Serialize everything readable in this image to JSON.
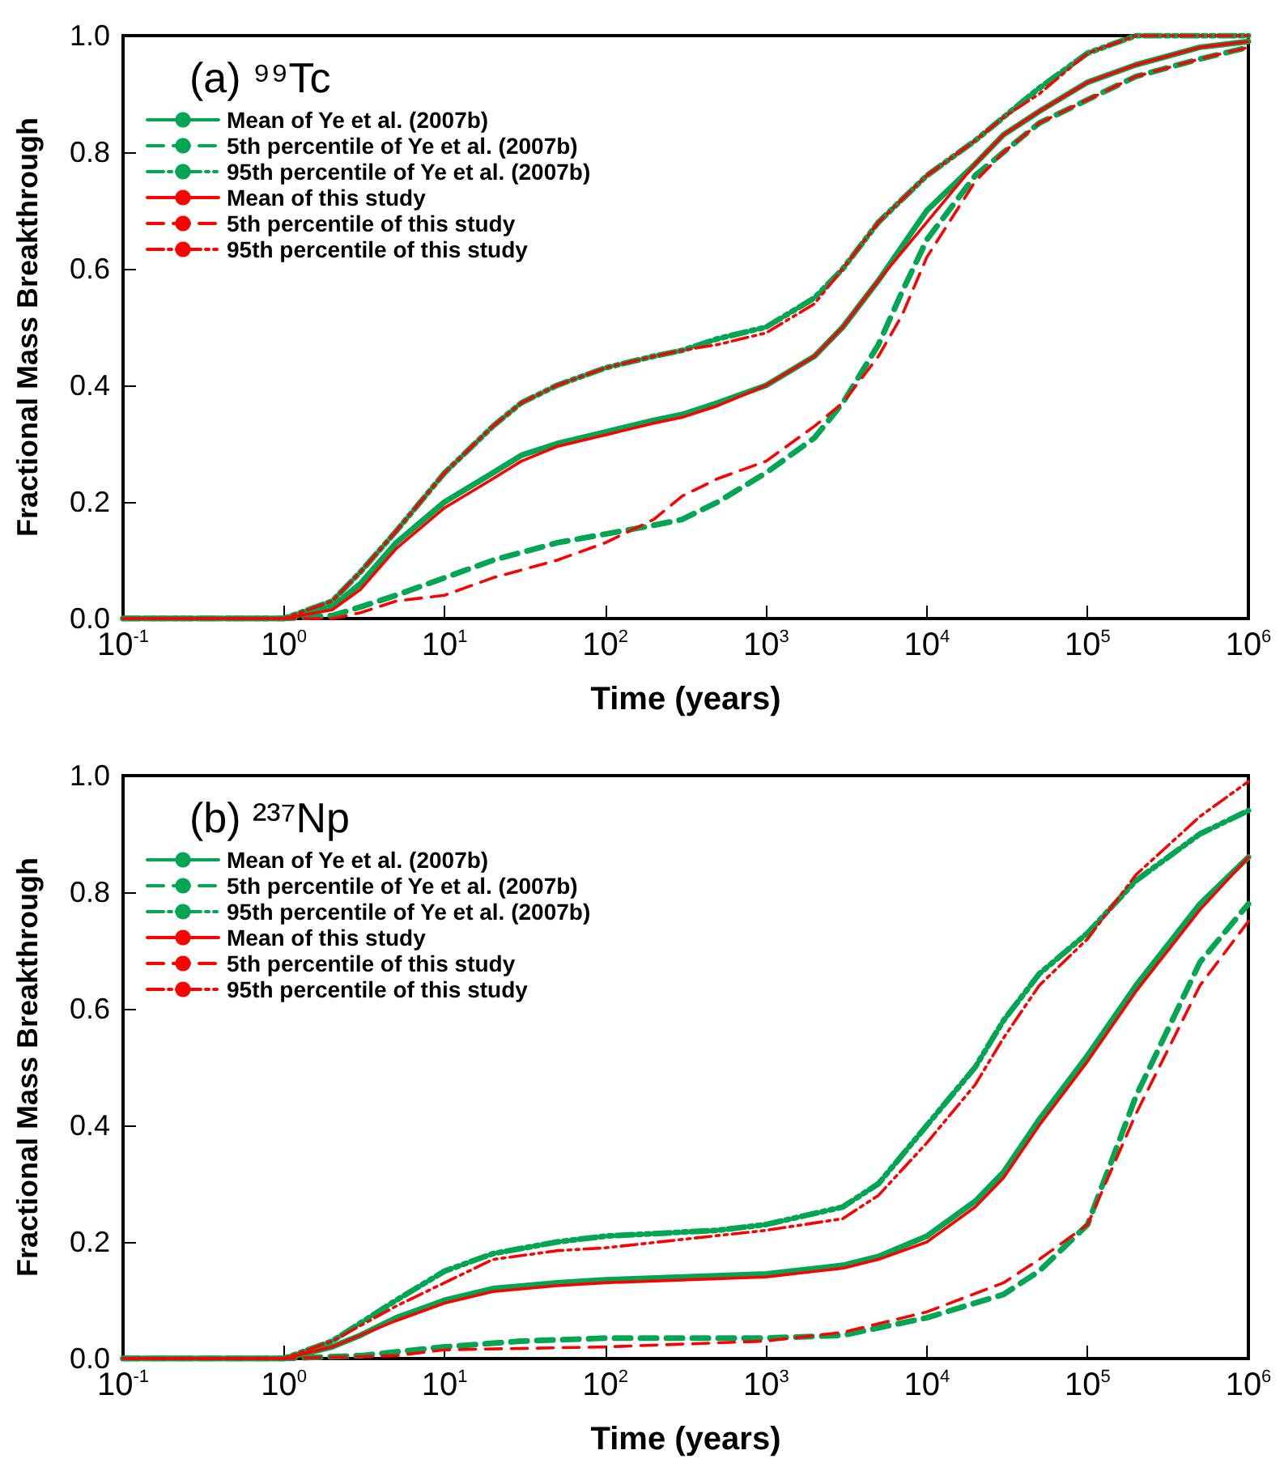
{
  "chart_data": [
    {
      "type": "line",
      "title": "(a) ⁹⁹Tc",
      "xlabel": "Time (years)",
      "ylabel": "Fractional Mass Breakthrough",
      "log": "x",
      "legend": "top left",
      "grid": false,
      "marker": "none",
      "xlim": [
        0.1,
        1000000
      ],
      "xticks": [
        {
          "value": 0.1,
          "label": "10$^{-1}$"
        },
        {
          "value": 1,
          "label": "10$^{0}$"
        },
        {
          "value": 10,
          "label": "10$^{1}$"
        },
        {
          "value": 100,
          "label": "10$^{2}$"
        },
        {
          "value": 1000,
          "label": "10$^{3}$"
        },
        {
          "value": 10000,
          "label": "10$^{4}$"
        },
        {
          "value": 100000,
          "label": "10$^{5}$"
        },
        {
          "value": 1000000,
          "label": "10$^{6}$"
        }
      ],
      "ylim": [
        0,
        1
      ],
      "yticks": [
        {
          "value": 0,
          "label": "0.0"
        },
        {
          "value": 0.2,
          "label": "0.2"
        },
        {
          "value": 0.4,
          "label": "0.4"
        },
        {
          "value": 0.6,
          "label": "0.6"
        },
        {
          "value": 0.8,
          "label": "0.8"
        },
        {
          "value": 1,
          "label": "1.0"
        }
      ],
      "series": [
        {
          "name": "Mean of Ye et al. (2007b)",
          "color": "#00a651",
          "line_style": "solid",
          "x": [
            0.1,
            1,
            2,
            3,
            5,
            10,
            20,
            30,
            50,
            100,
            200,
            300,
            500,
            1000,
            2000,
            3000,
            5000,
            10000,
            20000,
            30000,
            50000,
            100000,
            200000,
            500000,
            1000000
          ],
          "values": [
            0,
            0,
            0.02,
            0.06,
            0.13,
            0.2,
            0.25,
            0.28,
            0.3,
            0.32,
            0.34,
            0.35,
            0.37,
            0.4,
            0.45,
            0.5,
            0.58,
            0.7,
            0.78,
            0.83,
            0.87,
            0.92,
            0.95,
            0.98,
            0.99
          ]
        },
        {
          "name": "5th percentile of Ye et al. (2007b)",
          "color": "#00a651",
          "line_style": "dashed",
          "x": [
            0.1,
            1,
            2,
            3,
            5,
            10,
            20,
            50,
            100,
            200,
            300,
            500,
            1000,
            2000,
            3000,
            5000,
            7000,
            10000,
            20000,
            30000,
            50000,
            100000,
            200000,
            500000,
            1000000
          ],
          "values": [
            0,
            0,
            0.005,
            0.02,
            0.04,
            0.07,
            0.1,
            0.13,
            0.145,
            0.16,
            0.17,
            0.2,
            0.25,
            0.31,
            0.37,
            0.47,
            0.56,
            0.65,
            0.76,
            0.8,
            0.85,
            0.89,
            0.93,
            0.96,
            0.98
          ]
        },
        {
          "name": "95th percentile of Ye et al. (2007b)",
          "color": "#00a651",
          "line_style": "dotted",
          "x": [
            0.1,
            1,
            2,
            3,
            5,
            10,
            20,
            30,
            50,
            100,
            200,
            300,
            500,
            1000,
            2000,
            3000,
            5000,
            10000,
            20000,
            30000,
            50000,
            100000,
            200000,
            1000000
          ],
          "values": [
            0,
            0,
            0.03,
            0.08,
            0.15,
            0.25,
            0.33,
            0.37,
            0.4,
            0.43,
            0.45,
            0.46,
            0.48,
            0.5,
            0.55,
            0.6,
            0.68,
            0.76,
            0.82,
            0.86,
            0.91,
            0.97,
            1,
            1
          ]
        },
        {
          "name": "Mean of this study",
          "color": "#ff0000",
          "line_style": "solid",
          "x": [
            0.1,
            1,
            2,
            3,
            5,
            10,
            20,
            30,
            50,
            100,
            200,
            300,
            500,
            1000,
            2000,
            3000,
            5000,
            10000,
            20000,
            30000,
            50000,
            100000,
            200000,
            500000,
            1000000
          ],
          "values": [
            0,
            0,
            0.015,
            0.05,
            0.12,
            0.19,
            0.24,
            0.27,
            0.295,
            0.315,
            0.335,
            0.345,
            0.365,
            0.4,
            0.45,
            0.5,
            0.58,
            0.68,
            0.78,
            0.83,
            0.87,
            0.92,
            0.95,
            0.98,
            0.99
          ]
        },
        {
          "name": "5th percentile of this study",
          "color": "#ff0000",
          "line_style": "dashed",
          "x": [
            0.1,
            1,
            2,
            3,
            5,
            10,
            20,
            50,
            100,
            200,
            300,
            500,
            1000,
            2000,
            3000,
            5000,
            7000,
            10000,
            20000,
            30000,
            50000,
            100000,
            200000,
            500000,
            1000000
          ],
          "values": [
            0,
            0,
            0,
            0.01,
            0.03,
            0.04,
            0.07,
            0.1,
            0.13,
            0.17,
            0.21,
            0.24,
            0.27,
            0.33,
            0.37,
            0.45,
            0.52,
            0.62,
            0.75,
            0.8,
            0.85,
            0.89,
            0.93,
            0.96,
            0.98
          ]
        },
        {
          "name": "95th percentile of this study",
          "color": "#ff0000",
          "line_style": "dotted",
          "x": [
            0.1,
            1,
            2,
            3,
            5,
            10,
            20,
            30,
            50,
            100,
            200,
            300,
            500,
            1000,
            2000,
            3000,
            5000,
            10000,
            20000,
            30000,
            50000,
            100000,
            200000,
            1000000
          ],
          "values": [
            0,
            0,
            0.03,
            0.08,
            0.15,
            0.25,
            0.33,
            0.37,
            0.4,
            0.43,
            0.45,
            0.46,
            0.47,
            0.49,
            0.54,
            0.6,
            0.68,
            0.76,
            0.82,
            0.86,
            0.9,
            0.97,
            1,
            1
          ]
        }
      ]
    },
    {
      "type": "line",
      "title": "(b) ²³⁷Np",
      "xlabel": "Time (years)",
      "ylabel": "Fractional Mass Breakthrough",
      "log": "x",
      "legend": "top left",
      "grid": false,
      "marker": "none",
      "xlim": [
        0.1,
        1000000
      ],
      "xticks": [
        {
          "value": 0.1,
          "label": "10$^{-1}$"
        },
        {
          "value": 1,
          "label": "10$^{0}$"
        },
        {
          "value": 10,
          "label": "10$^{1}$"
        },
        {
          "value": 100,
          "label": "10$^{2}$"
        },
        {
          "value": 1000,
          "label": "10$^{3}$"
        },
        {
          "value": 10000,
          "label": "10$^{4}$"
        },
        {
          "value": 100000,
          "label": "10$^{5}$"
        },
        {
          "value": 1000000,
          "label": "10$^{6}$"
        }
      ],
      "ylim": [
        0,
        1
      ],
      "yticks": [
        {
          "value": 0,
          "label": "0.0"
        },
        {
          "value": 0.2,
          "label": "0.2"
        },
        {
          "value": 0.4,
          "label": "0.4"
        },
        {
          "value": 0.6,
          "label": "0.6"
        },
        {
          "value": 0.8,
          "label": "0.8"
        },
        {
          "value": 1,
          "label": "1.0"
        }
      ],
      "series": [
        {
          "name": "Mean of Ye et al. (2007b)",
          "color": "#00a651",
          "line_style": "solid",
          "x": [
            0.1,
            1,
            2,
            3,
            5,
            10,
            20,
            50,
            100,
            1000,
            3000,
            5000,
            10000,
            20000,
            30000,
            50000,
            100000,
            200000,
            500000,
            1000000
          ],
          "values": [
            0,
            0,
            0.02,
            0.04,
            0.07,
            0.1,
            0.12,
            0.13,
            0.135,
            0.145,
            0.16,
            0.175,
            0.21,
            0.27,
            0.32,
            0.41,
            0.52,
            0.64,
            0.78,
            0.86
          ]
        },
        {
          "name": "5th percentile of Ye et al. (2007b)",
          "color": "#00a651",
          "line_style": "dashed",
          "x": [
            0.1,
            1,
            3,
            10,
            30,
            100,
            1000,
            3000,
            10000,
            30000,
            50000,
            100000,
            200000,
            500000,
            1000000
          ],
          "values": [
            0,
            0,
            0.005,
            0.02,
            0.03,
            0.035,
            0.035,
            0.04,
            0.07,
            0.11,
            0.15,
            0.23,
            0.45,
            0.68,
            0.78
          ]
        },
        {
          "name": "95th percentile of Ye et al. (2007b)",
          "color": "#00a651",
          "line_style": "dotted",
          "x": [
            0.1,
            1,
            2,
            5,
            10,
            20,
            50,
            100,
            500,
            1000,
            3000,
            5000,
            10000,
            20000,
            30000,
            50000,
            100000,
            200000,
            500000,
            1000000
          ],
          "values": [
            0,
            0,
            0.03,
            0.1,
            0.15,
            0.18,
            0.2,
            0.21,
            0.22,
            0.23,
            0.26,
            0.3,
            0.4,
            0.5,
            0.58,
            0.66,
            0.73,
            0.82,
            0.9,
            0.94
          ]
        },
        {
          "name": "Mean of this study",
          "color": "#ff0000",
          "line_style": "solid",
          "x": [
            0.1,
            1,
            2,
            3,
            5,
            10,
            20,
            50,
            100,
            1000,
            3000,
            5000,
            10000,
            20000,
            30000,
            50000,
            100000,
            200000,
            500000,
            1000000
          ],
          "values": [
            0,
            0,
            0.02,
            0.04,
            0.065,
            0.095,
            0.115,
            0.125,
            0.13,
            0.14,
            0.155,
            0.17,
            0.2,
            0.26,
            0.31,
            0.4,
            0.51,
            0.63,
            0.77,
            0.86
          ]
        },
        {
          "name": "5th percentile of this study",
          "color": "#ff0000",
          "line_style": "dashed",
          "x": [
            0.1,
            1,
            5,
            10,
            100,
            1000,
            3000,
            10000,
            30000,
            50000,
            100000,
            200000,
            500000,
            1000000
          ],
          "values": [
            0,
            0,
            0.005,
            0.015,
            0.02,
            0.03,
            0.045,
            0.08,
            0.13,
            0.17,
            0.23,
            0.42,
            0.64,
            0.75
          ]
        },
        {
          "name": "95th percentile of this study",
          "color": "#ff0000",
          "line_style": "dotted",
          "x": [
            0.1,
            1,
            2,
            5,
            10,
            20,
            50,
            100,
            1000,
            3000,
            5000,
            10000,
            20000,
            30000,
            50000,
            100000,
            200000,
            500000,
            1000000
          ],
          "values": [
            0,
            0,
            0.03,
            0.09,
            0.13,
            0.17,
            0.185,
            0.19,
            0.22,
            0.24,
            0.28,
            0.37,
            0.47,
            0.55,
            0.64,
            0.72,
            0.83,
            0.93,
            0.99
          ]
        }
      ]
    }
  ]
}
